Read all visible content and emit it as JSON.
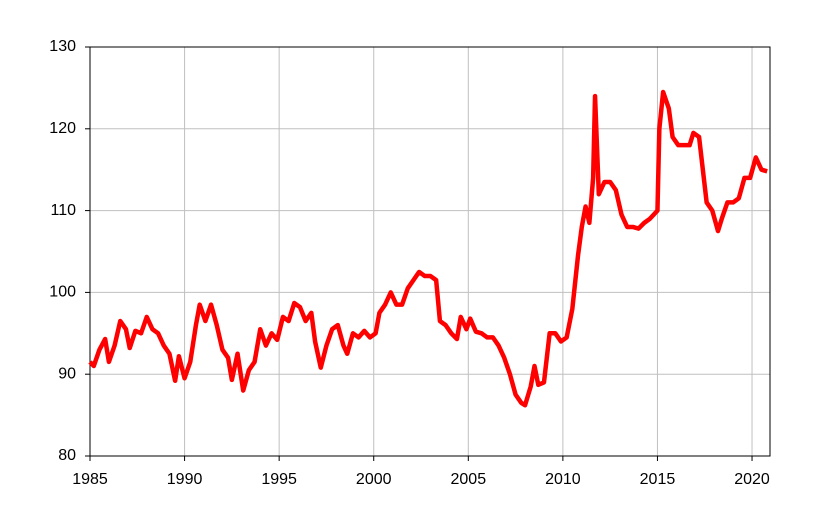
{
  "chart_data": {
    "type": "line",
    "x": [
      1985.0,
      1985.2,
      1985.5,
      1985.8,
      1986.0,
      1986.3,
      1986.6,
      1986.9,
      1987.1,
      1987.4,
      1987.7,
      1988.0,
      1988.3,
      1988.6,
      1988.9,
      1989.2,
      1989.5,
      1989.7,
      1990.0,
      1990.3,
      1990.6,
      1990.8,
      1991.1,
      1991.4,
      1991.7,
      1992.0,
      1992.3,
      1992.5,
      1992.8,
      1993.1,
      1993.4,
      1993.7,
      1994.0,
      1994.3,
      1994.6,
      1994.9,
      1995.2,
      1995.5,
      1995.8,
      1996.1,
      1996.4,
      1996.7,
      1996.9,
      1997.2,
      1997.5,
      1997.8,
      1998.1,
      1998.4,
      1998.6,
      1998.9,
      1999.2,
      1999.5,
      1999.8,
      2000.1,
      2000.3,
      2000.6,
      2000.9,
      2001.2,
      2001.5,
      2001.8,
      2002.1,
      2002.4,
      2002.7,
      2003.0,
      2003.3,
      2003.5,
      2003.8,
      2004.1,
      2004.4,
      2004.6,
      2004.9,
      2005.1,
      2005.4,
      2005.7,
      2006.0,
      2006.3,
      2006.6,
      2006.9,
      2007.2,
      2007.5,
      2007.8,
      2008.0,
      2008.3,
      2008.5,
      2008.7,
      2009.0,
      2009.3,
      2009.6,
      2009.9,
      2010.2,
      2010.5,
      2010.8,
      2011.0,
      2011.2,
      2011.4,
      2011.6,
      2011.7,
      2011.9,
      2012.2,
      2012.5,
      2012.8,
      2013.1,
      2013.4,
      2013.7,
      2014.0,
      2014.3,
      2014.6,
      2015.0,
      2015.1,
      2015.3,
      2015.6,
      2015.8,
      2016.1,
      2016.4,
      2016.7,
      2016.9,
      2017.2,
      2017.4,
      2017.6,
      2017.9,
      2018.2,
      2018.4,
      2018.7,
      2019.0,
      2019.3,
      2019.6,
      2019.9,
      2020.2,
      2020.5,
      2020.8
    ],
    "series": [
      {
        "color": "#ff0000",
        "values": [
          91.5,
          91,
          93,
          94.3,
          91.5,
          93.5,
          96.5,
          95.5,
          93.2,
          95.3,
          95,
          97,
          95.5,
          95,
          93.5,
          92.5,
          89.2,
          92.2,
          89.5,
          91.5,
          96,
          98.5,
          96.5,
          98.5,
          96,
          93,
          92,
          89.3,
          92.5,
          88,
          90.5,
          91.5,
          95.5,
          93.5,
          95,
          94.2,
          97,
          96.5,
          98.7,
          98.2,
          96.5,
          97.5,
          94,
          90.8,
          93.5,
          95.5,
          96,
          93.5,
          92.5,
          95,
          94.5,
          95.3,
          94.5,
          95,
          97.5,
          98.5,
          100,
          98.5,
          98.5,
          100.5,
          101.5,
          102.5,
          102,
          102,
          101.5,
          96.5,
          96,
          95,
          94.3,
          97,
          95.5,
          96.8,
          95.2,
          95,
          94.5,
          94.5,
          93.5,
          92,
          90,
          87.5,
          86.5,
          86.2,
          88.5,
          91,
          88.7,
          89,
          95,
          95,
          94,
          94.5,
          98,
          104.5,
          108,
          110.5,
          108.5,
          114,
          124,
          112,
          113.5,
          113.5,
          112.5,
          109.5,
          108,
          108,
          107.8,
          108.5,
          109,
          110,
          120,
          124.5,
          122.5,
          119,
          118,
          118,
          118,
          119.5,
          119,
          115,
          111,
          110,
          107.5,
          109,
          111,
          111,
          111.5,
          114,
          114,
          116.5,
          115,
          114.8
        ]
      }
    ],
    "xlim": [
      1985,
      2020.95
    ],
    "ylim": [
      80,
      130
    ],
    "xticks": [
      1985,
      1990,
      1995,
      2000,
      2005,
      2010,
      2015,
      2020
    ],
    "yticks": [
      80,
      90,
      100,
      110,
      120,
      130
    ],
    "grid": true
  }
}
